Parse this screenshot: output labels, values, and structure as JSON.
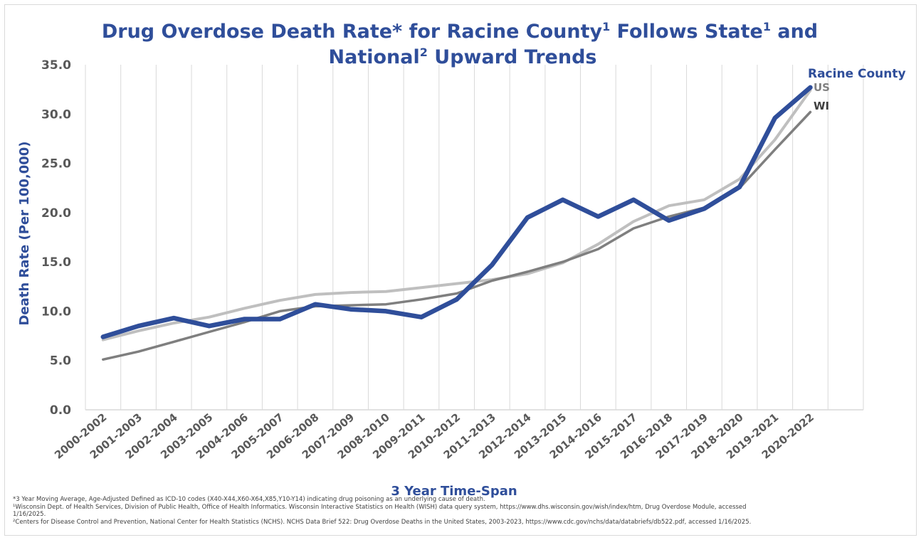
{
  "chart_data": {
    "type": "line",
    "title": {
      "part1": "Drug Overdose Death Rate* for Racine County",
      "sup1": "1",
      "part2": " Follows State",
      "sup2": "1",
      "part3": " and",
      "line2a": "National",
      "sup3": "2",
      "line2b": " Upward Trends"
    },
    "xlabel": "3 Year Time-Span",
    "ylabel": "Death Rate (Per 100,000)",
    "ylim": [
      0,
      35
    ],
    "yticks": [
      "0.0",
      "5.0",
      "10.0",
      "15.0",
      "20.0",
      "25.0",
      "30.0",
      "35.0"
    ],
    "categories": [
      "2000-2002",
      "2001-2003",
      "2002-2004",
      "2003-2005",
      "2004-2006",
      "2005-2007",
      "2006-2008",
      "2007-2009",
      "2008-2010",
      "2009-2011",
      "2010-2012",
      "2011-2013",
      "2012-2014",
      "2013-2015",
      "2014-2016",
      "2015-2017",
      "2016-2018",
      "2017-2019",
      "2018-2020",
      "2019-2021",
      "2020-2022"
    ],
    "grid": "vertical",
    "series": [
      {
        "name": "US",
        "color": "#bfbfbf",
        "values": [
          7.1,
          8.0,
          8.8,
          9.4,
          10.3,
          11.1,
          11.7,
          11.9,
          12.0,
          12.4,
          12.8,
          13.2,
          13.8,
          14.9,
          16.8,
          19.1,
          20.7,
          21.3,
          23.4,
          27.4,
          32.4
        ]
      },
      {
        "name": "WI",
        "color": "#7f7f7f",
        "values": [
          5.1,
          5.9,
          6.9,
          7.9,
          8.9,
          10.0,
          10.5,
          10.6,
          10.7,
          11.2,
          11.8,
          13.1,
          14.0,
          15.0,
          16.3,
          18.4,
          19.6,
          20.5,
          22.5,
          26.4,
          30.2
        ]
      },
      {
        "name": "Racine County",
        "color": "#2f4e9a",
        "values": [
          7.4,
          8.5,
          9.3,
          8.5,
          9.2,
          9.2,
          10.7,
          10.2,
          10.0,
          9.4,
          11.2,
          14.7,
          19.5,
          21.3,
          19.6,
          21.3,
          19.2,
          20.4,
          22.6,
          29.6,
          32.7
        ]
      }
    ]
  },
  "footnotes": [
    "*3 Year Moving Average, Age-Adjusted Defined as ICD-10 codes (X40-X44,X60-X64,X85,Y10-Y14) indicating drug poisoning as an underlying cause of death.",
    "¹Wisconsin Dept. of Health Services, Division of Public Health, Office of Health Informatics. Wisconsin Interactive Statistics on Health (WISH) data query system, https://www.dhs.wisconsin.gov/wish/index/htm, Drug Overdose Module, accessed",
    "1/16/2025.",
    "²Centers for Disease Control and Prevention, National Center for Health Statistics (NCHS). NCHS Data Brief 522: Drug Overdose Deaths in the United States, 2003-2023, https://www.cdc.gov/nchs/data/databriefs/db522.pdf, accessed 1/16/2025."
  ]
}
